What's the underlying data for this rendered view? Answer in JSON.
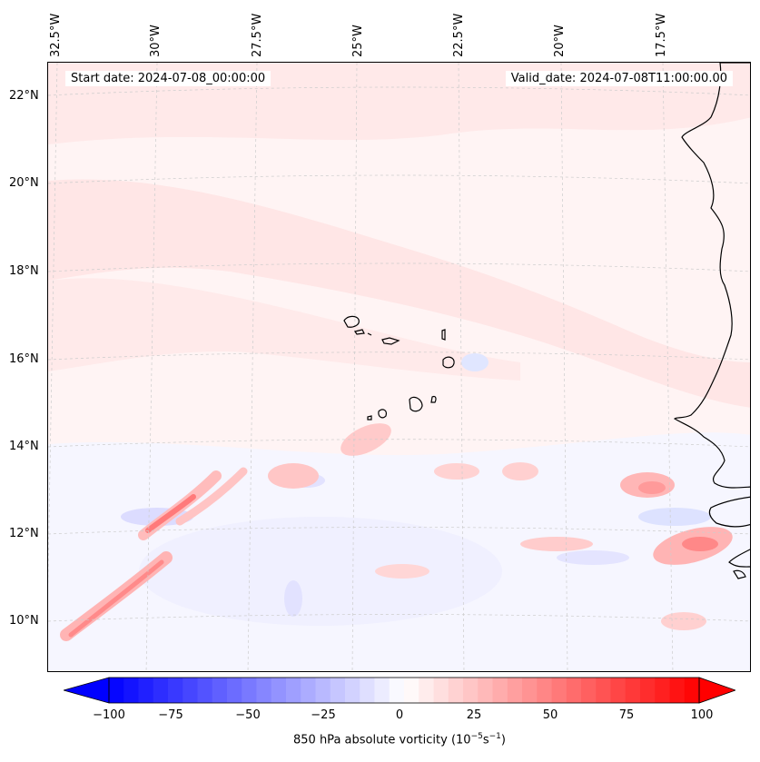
{
  "map": {
    "start_date": "Start date: 2024-07-08_00:00:00",
    "valid_date": "Valid_date: 2024-07-08T11:00:00.00",
    "longitude_labels": [
      "32.5°W",
      "30°W",
      "27.5°W",
      "25°W",
      "22.5°W",
      "20°W",
      "17.5°W"
    ],
    "latitude_labels": [
      "22°N",
      "20°N",
      "18°N",
      "16°N",
      "14°N",
      "12°N",
      "10°N"
    ],
    "field": "850 hPa absolute vorticity"
  },
  "colorbar": {
    "title_prefix": "850 hPa absolute vorticity (10",
    "title_exp1": "−5",
    "title_mid": "s",
    "title_exp2": "−1",
    "title_suffix": ")",
    "min": -100,
    "max": 100,
    "ticks": [
      "−100",
      "−75",
      "−50",
      "−25",
      "0",
      "25",
      "50",
      "75",
      "100"
    ],
    "low_color": "#0000ff",
    "high_color": "#ff0000"
  }
}
